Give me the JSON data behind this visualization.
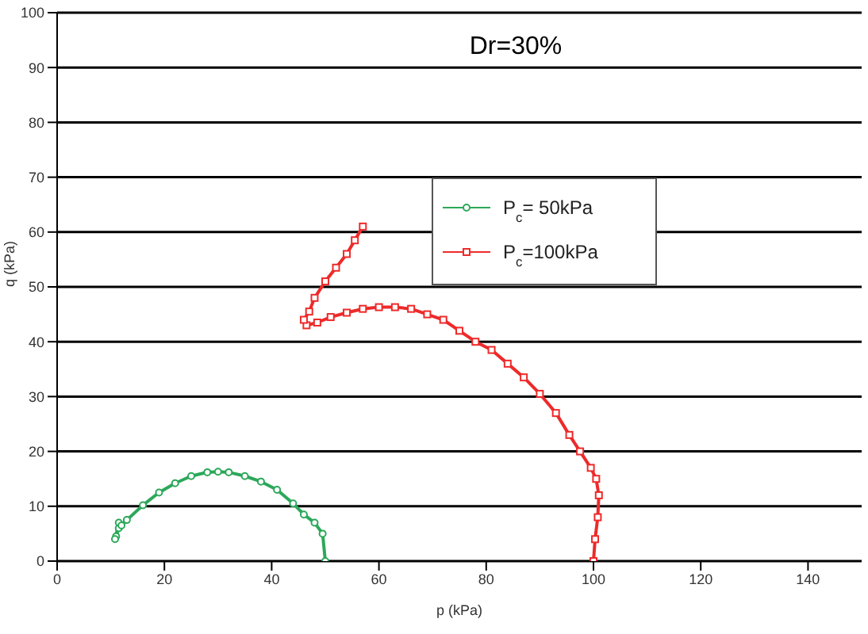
{
  "chart_data": {
    "type": "line",
    "title": "Dr=30%",
    "xlabel": "p (kPa)",
    "ylabel": "q (kPa)",
    "xlim": [
      0,
      150
    ],
    "xticks": [
      0,
      20,
      40,
      60,
      80,
      100,
      120,
      140
    ],
    "ylim": [
      0,
      100
    ],
    "yticks": [
      0,
      10,
      20,
      30,
      40,
      50,
      60,
      70,
      80,
      90,
      100
    ],
    "grid": "y",
    "legend": "top right",
    "line_style": "solid",
    "series": [
      {
        "name": "P$_{c}$= 50kPa",
        "color": "#2ca85a",
        "marker": "circle",
        "x": [
          50,
          49.5,
          48,
          46,
          44,
          41,
          38,
          35,
          32,
          30,
          28,
          25,
          22,
          19,
          16,
          13,
          11.5,
          11,
          10.8,
          11.5,
          12
        ],
        "values": [
          0,
          5,
          7,
          8.5,
          10.5,
          13,
          14.5,
          15.5,
          16.2,
          16.3,
          16.2,
          15.5,
          14.2,
          12.5,
          10.2,
          7.5,
          6,
          4.5,
          4,
          7,
          6.5
        ]
      },
      {
        "name": "P$_{c}$=100kPa",
        "color": "#ee2a2a",
        "marker": "square",
        "x": [
          100,
          100.3,
          100.8,
          101,
          100.5,
          99.5,
          97.5,
          95.5,
          93,
          90,
          87,
          84,
          81,
          78,
          75,
          72,
          69,
          66,
          63,
          60,
          57,
          54,
          51,
          48.5,
          46.5,
          46,
          47,
          48,
          50,
          52,
          54,
          55.5,
          57
        ],
        "values": [
          0,
          4,
          8,
          12,
          15,
          17,
          20,
          23,
          27,
          30.5,
          33.5,
          36,
          38.5,
          40,
          42,
          44,
          45,
          46,
          46.3,
          46.3,
          46,
          45.3,
          44.5,
          43.5,
          43,
          44,
          45.5,
          48,
          51,
          53.5,
          56,
          58.5,
          61
        ]
      }
    ]
  }
}
